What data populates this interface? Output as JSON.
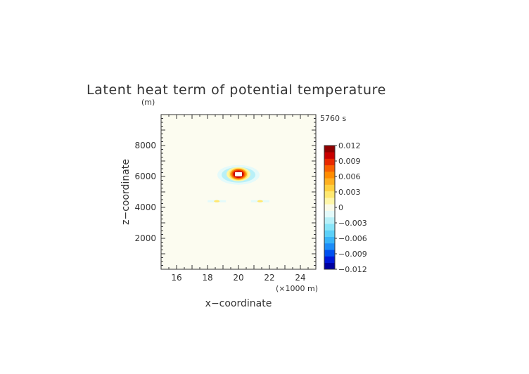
{
  "chart_data": {
    "type": "heatmap",
    "title": "Latent heat term of potential temperature",
    "time_label": "5760 s",
    "xlabel": "x−coordinate",
    "x_unit": "(×1000 m)",
    "ylabel": "z−coordinate",
    "y_unit": "(m)",
    "xlim": [
      15,
      25
    ],
    "ylim": [
      0,
      10000
    ],
    "x_ticks": [
      16,
      18,
      20,
      22,
      24
    ],
    "y_ticks": [
      2000,
      4000,
      6000,
      8000
    ],
    "x_tick_labels": [
      "16",
      "18",
      "20",
      "22",
      "24"
    ],
    "y_tick_labels": [
      "2000",
      "4000",
      "6000",
      "8000"
    ],
    "background_value": 0,
    "colorbar": {
      "min": -0.012,
      "max": 0.012,
      "ticks": [
        0.012,
        0.009,
        0.006,
        0.003,
        0,
        -0.003,
        -0.006,
        -0.009,
        -0.012
      ],
      "tick_labels": [
        "0.012",
        "0.009",
        "0.006",
        "0.003",
        "0",
        "−0.003",
        "−0.006",
        "−0.009",
        "−0.012"
      ],
      "colors": [
        "#0000a0",
        "#0018d8",
        "#0050f0",
        "#1c8cf8",
        "#38b4f8",
        "#5cd0f8",
        "#88e4f8",
        "#b8f0f8",
        "#e4fafa",
        "#fafae8",
        "#fff6a8",
        "#ffe870",
        "#ffd040",
        "#ffb020",
        "#ff8c00",
        "#f86000",
        "#e82800",
        "#c80000",
        "#900000"
      ]
    },
    "features": [
      {
        "x": 20.0,
        "z": 6150,
        "value": 0.012,
        "note": "latent heating maximum"
      },
      {
        "x": 18.6,
        "z": 4400,
        "value": 0.003
      },
      {
        "x": 21.4,
        "z": 4400,
        "value": 0.003
      }
    ]
  }
}
